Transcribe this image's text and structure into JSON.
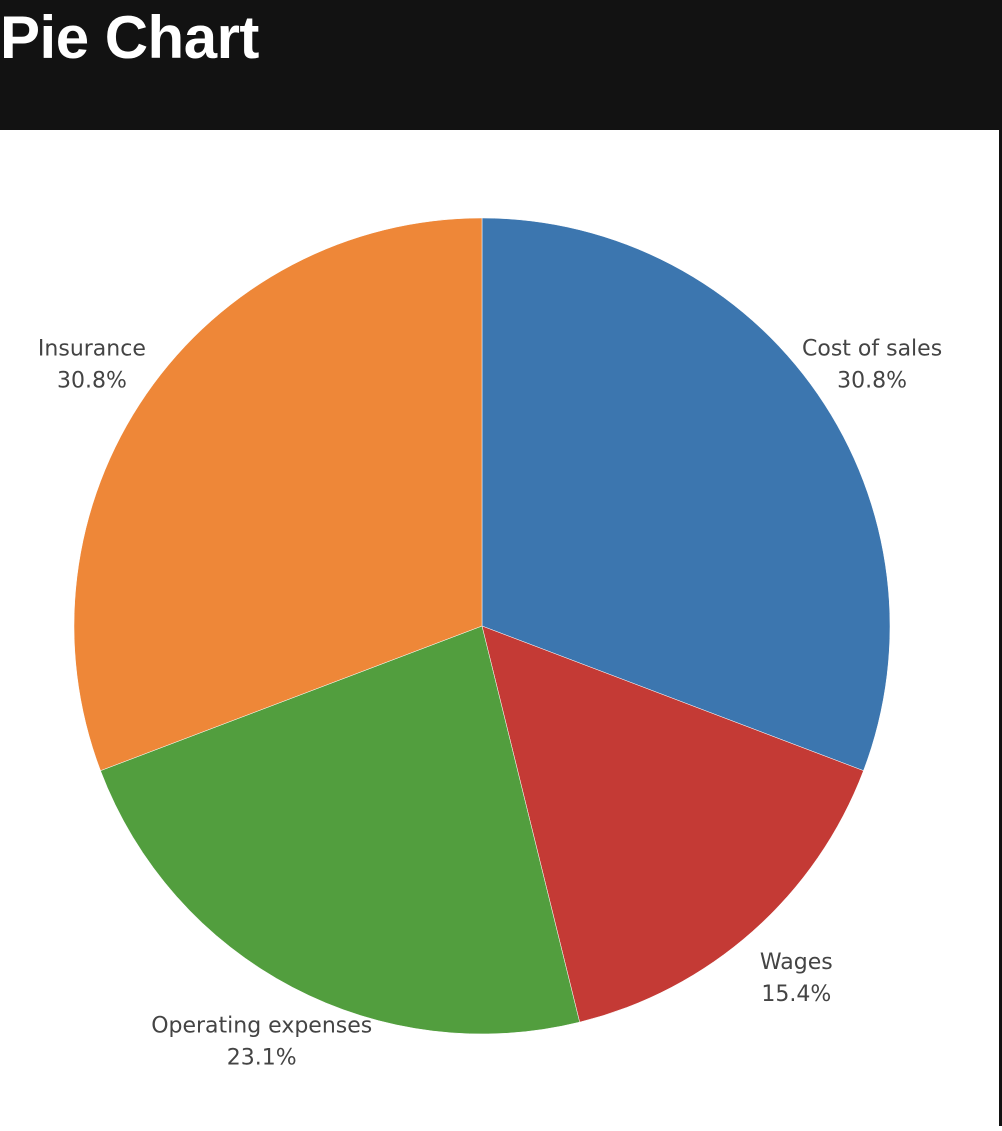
{
  "header": {
    "title": "Pie Chart"
  },
  "chart_data": {
    "type": "pie",
    "title": "",
    "slices": [
      {
        "label": "Cost of sales",
        "value": 30.8,
        "percent_label": "30.8%",
        "color": "#3c76af"
      },
      {
        "label": "Wages",
        "value": 15.4,
        "percent_label": "15.4%",
        "color": "#c43a35"
      },
      {
        "label": "Operating expenses",
        "value": 23.1,
        "percent_label": "23.1%",
        "color": "#529e3e"
      },
      {
        "label": "Insurance",
        "value": 30.8,
        "percent_label": "30.8%",
        "color": "#ee8738"
      }
    ],
    "start_angle": "12 o'clock",
    "direction": "clockwise",
    "legend": "none",
    "label_placement": "outside"
  }
}
